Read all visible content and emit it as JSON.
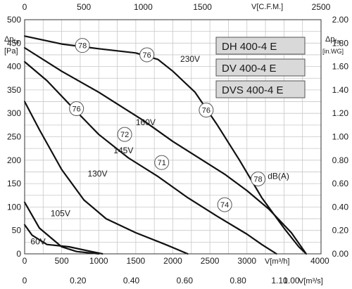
{
  "chart_data": {
    "type": "line",
    "x": {
      "label": "V[m³/h]",
      "min": 0,
      "max": 4000,
      "ticks": [
        "0",
        "500",
        "1000",
        "1500",
        "2000",
        "2500",
        "3000",
        "4000"
      ],
      "tick_values": [
        0,
        500,
        1000,
        1500,
        2000,
        2500,
        3000,
        4000
      ]
    },
    "x_top": {
      "label": "V[C.F.M.]",
      "ticks": [
        "0",
        "500",
        "1000",
        "1500",
        "2500"
      ],
      "tick_values": [
        0,
        500,
        1000,
        1500,
        2500
      ],
      "max": 2500
    },
    "x_bottom2": {
      "label": "V[m³/s]",
      "ticks": [
        "0",
        "0.20",
        "0.40",
        "0.60",
        "0.80",
        "1.00",
        "1.10"
      ],
      "tick_values": [
        0,
        0.2,
        0.4,
        0.6,
        0.8,
        1.0,
        1.1
      ],
      "max": 1.1111
    },
    "y": {
      "label": "Δp",
      "label_sub": "fa",
      "unit": "[Pa]",
      "min": 0,
      "max": 500,
      "ticks": [
        "0",
        "50",
        "100",
        "150",
        "200",
        "250",
        "300",
        "350",
        "400",
        "450",
        "500"
      ],
      "tick_values": [
        0,
        50,
        100,
        150,
        200,
        250,
        300,
        350,
        400,
        450,
        500
      ]
    },
    "y_right": {
      "label": "Δp",
      "label_sub": "fa",
      "unit": "[in.WG]",
      "max": 2.0,
      "ticks": [
        "0.00",
        "0.20",
        "0.40",
        "0.60",
        "0.80",
        "1.00",
        "1.20",
        "1.40",
        "1.60",
        "1.80",
        "2.00"
      ],
      "tick_values": [
        0,
        0.2,
        0.4,
        0.6,
        0.8,
        1.0,
        1.2,
        1.4,
        1.6,
        1.8,
        2.0
      ]
    },
    "grid": true,
    "legend": [
      "DH 400-4 E",
      "DV 400-4 E",
      "DVS 400-4 E"
    ],
    "series": [
      {
        "name": "230V",
        "points": [
          [
            0,
            465
          ],
          [
            500,
            448
          ],
          [
            1000,
            438
          ],
          [
            1500,
            429
          ],
          [
            1800,
            415
          ],
          [
            2000,
            390
          ],
          [
            2300,
            345
          ],
          [
            2600,
            275
          ],
          [
            2900,
            200
          ],
          [
            3200,
            120
          ],
          [
            3500,
            55
          ],
          [
            3700,
            15
          ],
          [
            3800,
            0
          ]
        ]
      },
      {
        "name": "160V",
        "points": [
          [
            0,
            440
          ],
          [
            500,
            390
          ],
          [
            1000,
            345
          ],
          [
            1300,
            315
          ],
          [
            1600,
            285
          ],
          [
            2000,
            240
          ],
          [
            2400,
            200
          ],
          [
            2700,
            170
          ],
          [
            3000,
            135
          ],
          [
            3300,
            95
          ],
          [
            3600,
            45
          ],
          [
            3800,
            0
          ]
        ]
      },
      {
        "name": "145V",
        "points": [
          [
            0,
            410
          ],
          [
            300,
            370
          ],
          [
            600,
            320
          ],
          [
            1000,
            255
          ],
          [
            1400,
            205
          ],
          [
            1800,
            165
          ],
          [
            2200,
            120
          ],
          [
            2600,
            80
          ],
          [
            3000,
            42
          ],
          [
            3200,
            20
          ],
          [
            3400,
            0
          ]
        ]
      },
      {
        "name": "130V",
        "points": [
          [
            0,
            325
          ],
          [
            200,
            265
          ],
          [
            500,
            180
          ],
          [
            800,
            115
          ],
          [
            1100,
            75
          ],
          [
            1500,
            45
          ],
          [
            1900,
            20
          ],
          [
            2200,
            0
          ]
        ]
      },
      {
        "name": "105V",
        "points": [
          [
            0,
            110
          ],
          [
            200,
            55
          ],
          [
            500,
            15
          ],
          [
            700,
            5
          ],
          [
            1000,
            0
          ]
        ]
      },
      {
        "name": "60V",
        "points": [
          [
            0,
            62
          ],
          [
            100,
            40
          ],
          [
            300,
            20
          ],
          [
            600,
            15
          ],
          [
            900,
            5
          ],
          [
            1050,
            0
          ]
        ]
      }
    ],
    "curve_labels": [
      {
        "text": "230V",
        "x": 2100,
        "y": 410
      },
      {
        "text": "160V",
        "x": 1500,
        "y": 275
      },
      {
        "text": "145V",
        "x": 1200,
        "y": 215
      },
      {
        "text": "130V",
        "x": 850,
        "y": 165
      },
      {
        "text": "105V",
        "x": 350,
        "y": 80
      },
      {
        "text": "60V",
        "x": 80,
        "y": 20
      },
      {
        "text": "dB(A)",
        "x": 3280,
        "y": 160
      }
    ],
    "sound_markers": [
      {
        "value": "78",
        "x": 780,
        "y": 445
      },
      {
        "value": "76",
        "x": 1650,
        "y": 425
      },
      {
        "value": "76",
        "x": 2450,
        "y": 307
      },
      {
        "value": "76",
        "x": 700,
        "y": 310
      },
      {
        "value": "72",
        "x": 1350,
        "y": 255
      },
      {
        "value": "71",
        "x": 1850,
        "y": 195
      },
      {
        "value": "74",
        "x": 2700,
        "y": 105
      },
      {
        "value": "78",
        "x": 3150,
        "y": 160
      }
    ],
    "colors": {
      "curve": "#111111",
      "legend_box": "#d9d9d9",
      "grid": "#c8c8c8"
    }
  }
}
